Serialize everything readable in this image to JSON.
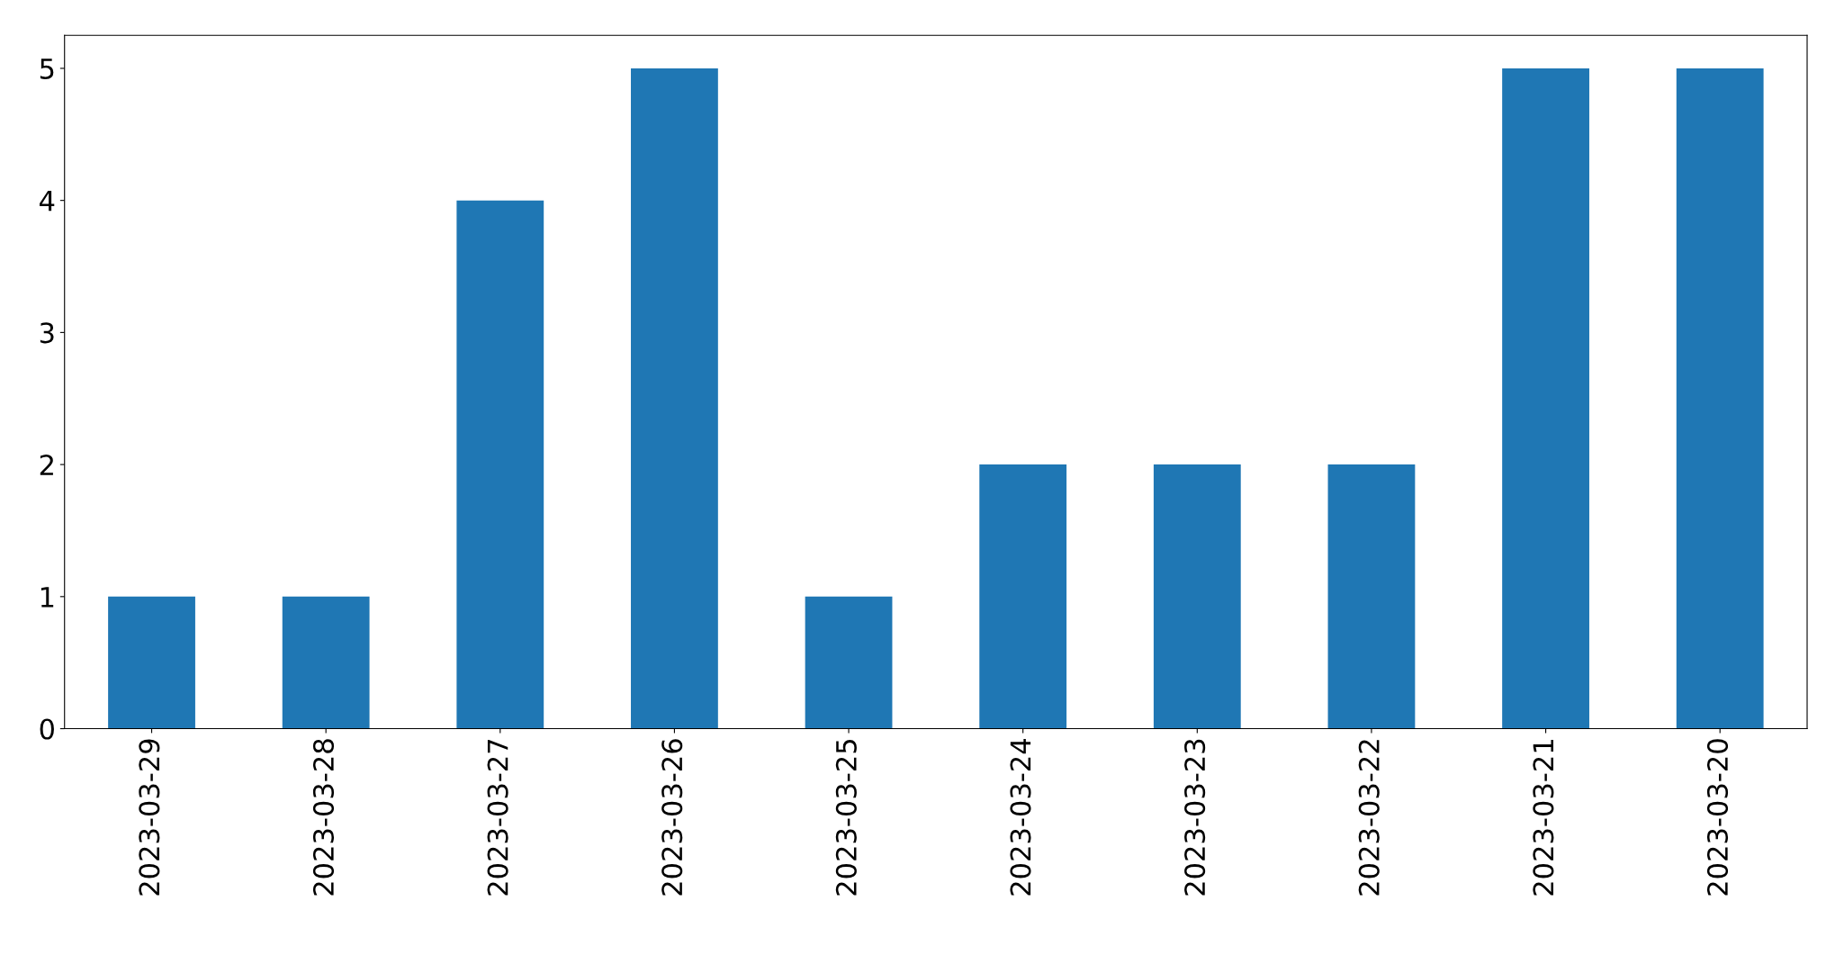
{
  "chart_data": {
    "type": "bar",
    "categories": [
      "2023-03-29",
      "2023-03-28",
      "2023-03-27",
      "2023-03-26",
      "2023-03-25",
      "2023-03-24",
      "2023-03-23",
      "2023-03-22",
      "2023-03-21",
      "2023-03-20"
    ],
    "values": [
      1,
      1,
      4,
      5,
      1,
      2,
      2,
      2,
      5,
      5
    ],
    "color": "#1f77b4",
    "ylim": [
      0,
      5.25
    ],
    "yticks": [
      0,
      1,
      2,
      3,
      4,
      5
    ],
    "grid": false,
    "legend": false
  }
}
